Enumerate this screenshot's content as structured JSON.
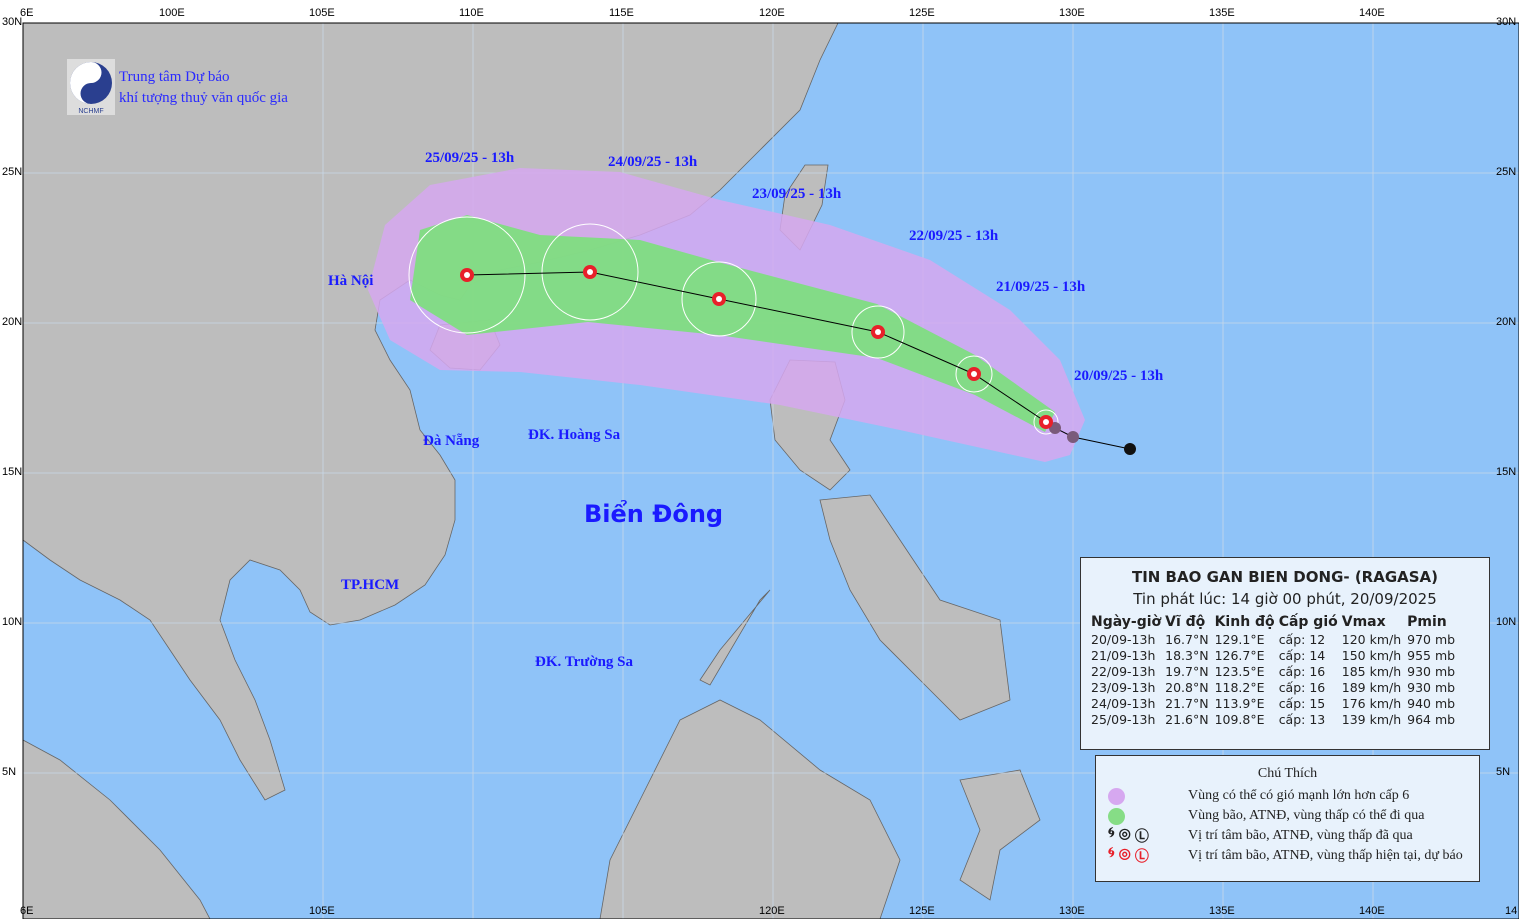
{
  "map": {
    "ocean_color": "#8fc3f8",
    "land_color": "#bdbdbd",
    "cone_color": "#d2a8f0",
    "track_color": "#7be07b",
    "lon_ticks": [
      "6E",
      "100E",
      "105E",
      "110E",
      "115E",
      "120E",
      "125E",
      "130E",
      "135E",
      "140E"
    ],
    "bottom_lon_ticks": [
      "6E",
      "105E",
      "120E",
      "125E",
      "130E",
      "135E",
      "140E",
      "14"
    ],
    "lat_ticks": [
      "30N",
      "25N",
      "20N",
      "15N",
      "10N",
      "5N"
    ]
  },
  "org": {
    "logo_text": "NCHMF",
    "line1": "Trung tâm Dự báo",
    "line2": "khí tượng thuỷ văn quốc gia"
  },
  "labels": {
    "sea": "Biển Đông",
    "hanoi": "Hà Nội",
    "danang": "Đà Nẵng",
    "hoangsa": "ĐK. Hoàng Sa",
    "hcm": "TP.HCM",
    "truongsa": "ĐK. Trường Sa"
  },
  "forecast_labels": [
    "20/09/25 - 13h",
    "21/09/25 - 13h",
    "22/09/25 - 13h",
    "23/09/25 - 13h",
    "24/09/25 - 13h",
    "25/09/25 - 13h"
  ],
  "track": {
    "past": [
      {
        "lon": 131.9,
        "lat": 15.8
      },
      {
        "lon": 130.0,
        "lat": 16.2
      },
      {
        "lon": 129.4,
        "lat": 16.5
      }
    ],
    "forecast": [
      {
        "lon": 129.1,
        "lat": 16.7
      },
      {
        "lon": 126.7,
        "lat": 18.3
      },
      {
        "lon": 123.5,
        "lat": 19.7
      },
      {
        "lon": 118.2,
        "lat": 20.8
      },
      {
        "lon": 113.9,
        "lat": 21.7
      },
      {
        "lon": 109.8,
        "lat": 21.6
      }
    ]
  },
  "info": {
    "title": "TIN BAO GAN BIEN DONG- (RAGASA)",
    "subtitle": "Tin phát lúc: 14 giờ 00 phút, 20/09/2025",
    "headers": [
      "Ngày-giờ",
      "Vĩ độ",
      "Kinh độ",
      "Cấp gió",
      "Vmax",
      "Pmin"
    ],
    "rows": [
      [
        "20/09-13h",
        "16.7°N",
        "129.1°E",
        "cấp: 12",
        "120 km/h",
        "970 mb"
      ],
      [
        "21/09-13h",
        "18.3°N",
        "126.7°E",
        "cấp: 14",
        "150 km/h",
        "955 mb"
      ],
      [
        "22/09-13h",
        "19.7°N",
        "123.5°E",
        "cấp: 16",
        "185 km/h",
        "930 mb"
      ],
      [
        "23/09-13h",
        "20.8°N",
        "118.2°E",
        "cấp: 16",
        "189 km/h",
        "930 mb"
      ],
      [
        "24/09-13h",
        "21.7°N",
        "113.9°E",
        "cấp: 15",
        "176 km/h",
        "940 mb"
      ],
      [
        "25/09-13h",
        "21.6°N",
        "109.8°E",
        "cấp: 13",
        "139 km/h",
        "964 mb"
      ]
    ]
  },
  "legend": {
    "title": "Chú Thích",
    "items": [
      "Vùng có thể có gió mạnh lớn hơn cấp 6",
      "Vùng bão, ATNĐ, vùng thấp có thể đi qua",
      "Vị trí tâm bão, ATNĐ, vùng thấp đã qua",
      "Vị trí tâm bão, ATNĐ, vùng thấp hiện tại, dự báo"
    ],
    "colors": {
      "wind_zone": "#d6a8f0",
      "storm_zone": "#86dd86",
      "past": "#222222",
      "current": "#e8202a"
    }
  }
}
